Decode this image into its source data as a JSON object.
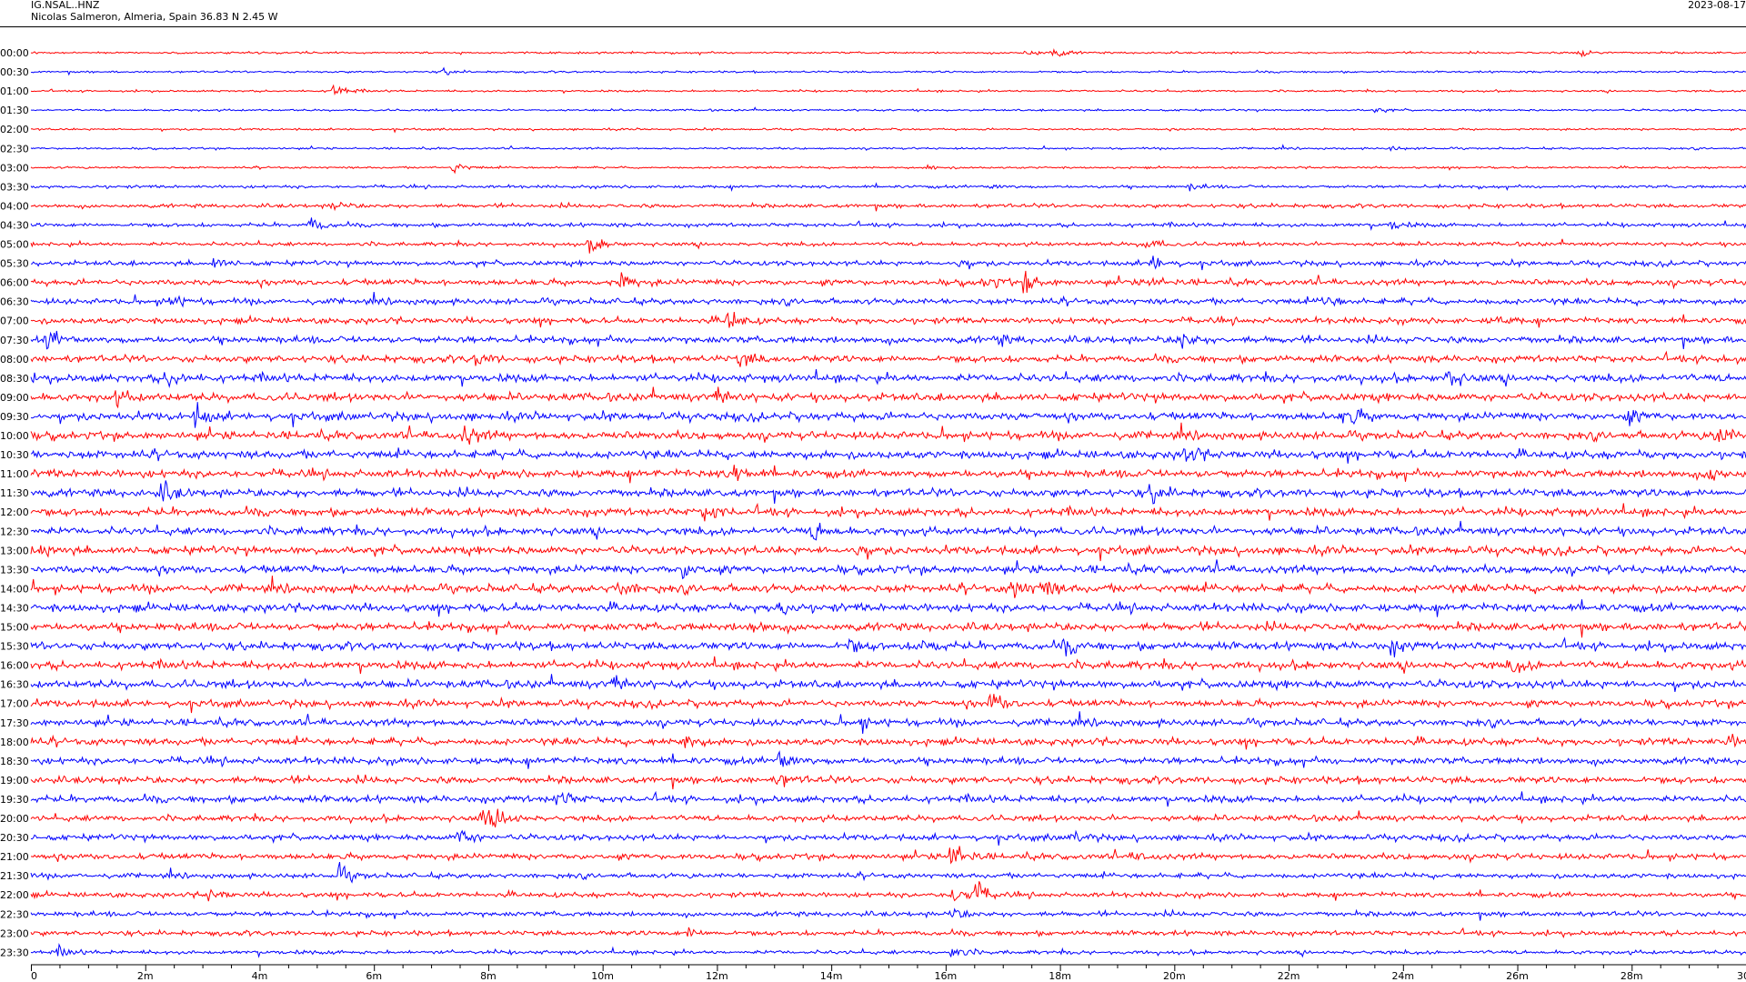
{
  "header": {
    "station_code": "IG.NSAL..HNZ",
    "location": "Nicolas Salmeron, Almeria, Spain  36.83 N 2.45 W",
    "date": "2023-08-17"
  },
  "chart_data": {
    "type": "helicorder",
    "title": "",
    "xlabel": "",
    "ylabel": "",
    "x_ticks": [
      "0",
      "2m",
      "4m",
      "6m",
      "8m",
      "10m",
      "12m",
      "14m",
      "16m",
      "18m",
      "20m",
      "22m",
      "24m",
      "26m",
      "28m",
      "30"
    ],
    "x_range_minutes": [
      0,
      30
    ],
    "minor_tick_step_minutes": 0.5,
    "row_labels": [
      "00:00",
      "00:30",
      "01:00",
      "01:30",
      "02:00",
      "02:30",
      "03:00",
      "03:30",
      "04:00",
      "04:30",
      "05:00",
      "05:30",
      "06:00",
      "06:30",
      "07:00",
      "07:30",
      "08:00",
      "08:30",
      "09:00",
      "09:30",
      "10:00",
      "10:30",
      "11:00",
      "11:30",
      "12:00",
      "12:30",
      "13:00",
      "13:30",
      "14:00",
      "14:30",
      "15:00",
      "15:30",
      "16:00",
      "16:30",
      "17:00",
      "17:30",
      "18:00",
      "18:30",
      "19:00",
      "19:30",
      "20:00",
      "20:30",
      "21:00",
      "21:30",
      "22:00",
      "22:30",
      "23:00",
      "23:30"
    ],
    "trace_colors": [
      "#ff0000",
      "#0000ff"
    ],
    "grid": false,
    "noise_level": [
      1,
      1,
      1,
      1,
      1,
      1,
      1,
      1.5,
      2,
      2,
      2,
      2.5,
      3,
      3,
      3,
      3.5,
      3.5,
      4,
      4,
      4,
      4,
      4,
      4,
      4,
      4,
      4,
      4,
      4,
      4,
      4,
      4,
      4,
      4,
      4,
      3.5,
      3.5,
      3.5,
      3.5,
      3.5,
      3.5,
      3,
      3,
      3,
      2.5,
      2.5,
      2.5,
      2.5,
      2
    ],
    "events": [
      {
        "row": 0,
        "minute": 17.4,
        "amp": 5
      },
      {
        "row": 0,
        "minute": 17.9,
        "amp": 6
      },
      {
        "row": 0,
        "minute": 27.1,
        "amp": 6
      },
      {
        "row": 1,
        "minute": 7.2,
        "amp": 4
      },
      {
        "row": 2,
        "minute": 5.3,
        "amp": 9
      },
      {
        "row": 3,
        "minute": 23.5,
        "amp": 3
      },
      {
        "row": 5,
        "minute": 23.8,
        "amp": 3
      },
      {
        "row": 6,
        "minute": 7.4,
        "amp": 7
      },
      {
        "row": 6,
        "minute": 15.7,
        "amp": 3
      },
      {
        "row": 7,
        "minute": 16.8,
        "amp": 3
      },
      {
        "row": 7,
        "minute": 20.3,
        "amp": 4
      },
      {
        "row": 8,
        "minute": 5.3,
        "amp": 6
      },
      {
        "row": 9,
        "minute": 4.9,
        "amp": 8
      },
      {
        "row": 9,
        "minute": 23.8,
        "amp": 5
      },
      {
        "row": 10,
        "minute": 9.8,
        "amp": 11
      },
      {
        "row": 10,
        "minute": 19.5,
        "amp": 8
      },
      {
        "row": 11,
        "minute": 3.2,
        "amp": 7
      },
      {
        "row": 11,
        "minute": 16.2,
        "amp": 6
      },
      {
        "row": 11,
        "minute": 19.6,
        "amp": 11
      },
      {
        "row": 12,
        "minute": 10.3,
        "amp": 10
      },
      {
        "row": 12,
        "minute": 16.7,
        "amp": 9
      },
      {
        "row": 12,
        "minute": 17.4,
        "amp": 11
      },
      {
        "row": 12,
        "minute": 19.6,
        "amp": 6
      },
      {
        "row": 13,
        "minute": 2.4,
        "amp": 10
      },
      {
        "row": 13,
        "minute": 22.6,
        "amp": 9
      },
      {
        "row": 14,
        "minute": 12.2,
        "amp": 12
      },
      {
        "row": 14,
        "minute": 25.6,
        "amp": 6
      },
      {
        "row": 15,
        "minute": 0.3,
        "amp": 12
      },
      {
        "row": 15,
        "minute": 16.9,
        "amp": 6
      },
      {
        "row": 15,
        "minute": 20.1,
        "amp": 11
      },
      {
        "row": 16,
        "minute": 7.8,
        "amp": 7
      },
      {
        "row": 16,
        "minute": 12.4,
        "amp": 10
      },
      {
        "row": 16,
        "minute": 29.5,
        "amp": 6
      },
      {
        "row": 17,
        "minute": 2.4,
        "amp": 12
      },
      {
        "row": 17,
        "minute": 24.8,
        "amp": 11
      },
      {
        "row": 18,
        "minute": 1.5,
        "amp": 7
      },
      {
        "row": 18,
        "minute": 12.0,
        "amp": 12
      },
      {
        "row": 19,
        "minute": 2.9,
        "amp": 11
      },
      {
        "row": 19,
        "minute": 23.0,
        "amp": 14
      },
      {
        "row": 19,
        "minute": 27.9,
        "amp": 7
      },
      {
        "row": 20,
        "minute": 7.6,
        "amp": 13
      },
      {
        "row": 20,
        "minute": 29.5,
        "amp": 13
      },
      {
        "row": 21,
        "minute": 20.2,
        "amp": 11
      },
      {
        "row": 22,
        "minute": 12.3,
        "amp": 12
      },
      {
        "row": 22,
        "minute": 29.4,
        "amp": 7
      },
      {
        "row": 23,
        "minute": 2.3,
        "amp": 11
      },
      {
        "row": 23,
        "minute": 19.6,
        "amp": 11
      },
      {
        "row": 24,
        "minute": 11.8,
        "amp": 12
      },
      {
        "row": 25,
        "minute": 13.7,
        "amp": 12
      },
      {
        "row": 26,
        "minute": 0.2,
        "amp": 8
      },
      {
        "row": 26,
        "minute": 14.4,
        "amp": 9
      },
      {
        "row": 27,
        "minute": 11.4,
        "amp": 11
      },
      {
        "row": 28,
        "minute": 10.3,
        "amp": 11
      },
      {
        "row": 28,
        "minute": 17.2,
        "amp": 12
      },
      {
        "row": 28,
        "minute": 17.7,
        "amp": 12
      },
      {
        "row": 29,
        "minute": 13.1,
        "amp": 9
      },
      {
        "row": 30,
        "minute": 12.6,
        "amp": 8
      },
      {
        "row": 31,
        "minute": 14.3,
        "amp": 8
      },
      {
        "row": 31,
        "minute": 15.6,
        "amp": 11
      },
      {
        "row": 31,
        "minute": 18.1,
        "amp": 9
      },
      {
        "row": 31,
        "minute": 23.8,
        "amp": 8
      },
      {
        "row": 32,
        "minute": 25.9,
        "amp": 9
      },
      {
        "row": 33,
        "minute": 10.2,
        "amp": 11
      },
      {
        "row": 34,
        "minute": 16.8,
        "amp": 14
      },
      {
        "row": 35,
        "minute": 14.5,
        "amp": 8
      },
      {
        "row": 36,
        "minute": 11.4,
        "amp": 9
      },
      {
        "row": 36,
        "minute": 29.7,
        "amp": 7
      },
      {
        "row": 37,
        "minute": 13.1,
        "amp": 13
      },
      {
        "row": 38,
        "minute": 13.1,
        "amp": 7
      },
      {
        "row": 39,
        "minute": 9.2,
        "amp": 11
      },
      {
        "row": 40,
        "minute": 7.9,
        "amp": 13
      },
      {
        "row": 40,
        "minute": 8.2,
        "amp": 10
      },
      {
        "row": 41,
        "minute": 7.5,
        "amp": 11
      },
      {
        "row": 41,
        "minute": 18.2,
        "amp": 6
      },
      {
        "row": 42,
        "minute": 16.1,
        "amp": 22
      },
      {
        "row": 42,
        "minute": 19.3,
        "amp": 4
      },
      {
        "row": 43,
        "minute": 5.4,
        "amp": 11
      },
      {
        "row": 44,
        "minute": 3.1,
        "amp": 8
      },
      {
        "row": 44,
        "minute": 16.1,
        "amp": 16
      },
      {
        "row": 44,
        "minute": 16.5,
        "amp": 16
      },
      {
        "row": 45,
        "minute": 16.1,
        "amp": 8
      },
      {
        "row": 46,
        "minute": 11.5,
        "amp": 6
      },
      {
        "row": 47,
        "minute": 0.5,
        "amp": 5
      },
      {
        "row": 47,
        "minute": 16.1,
        "amp": 8
      }
    ]
  }
}
